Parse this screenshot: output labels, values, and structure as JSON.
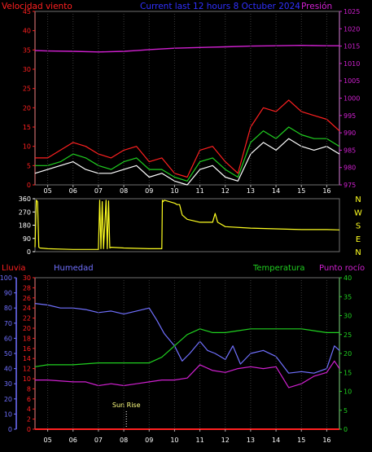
{
  "header": {
    "wind_label": "Velocidad viento",
    "title": "Current last 12 hours 8 Octuber 2024",
    "pressure_label": "Presión"
  },
  "chart_data": [
    {
      "type": "line",
      "id": "wind_pressure",
      "x_ticks": [
        "05",
        "06",
        "07",
        "08",
        "09",
        "10",
        "11",
        "12",
        "13",
        "14",
        "15",
        "16"
      ],
      "x_range": [
        4.5,
        16.5
      ],
      "y_left_range": [
        0,
        45
      ],
      "y_left_ticks": [
        "0",
        "5",
        "10",
        "15",
        "20",
        "25",
        "30",
        "35",
        "40",
        "45"
      ],
      "y_right_range": [
        975,
        1025
      ],
      "y_right_ticks": [
        "975",
        "980",
        "985",
        "990",
        "995",
        "1000",
        "1005",
        "1010",
        "1015",
        "1020",
        "1025"
      ],
      "colors": {
        "gust": "#ff2020",
        "average": "#20d020",
        "wind": "#ffffff",
        "pressure": "#d020d0"
      },
      "series": [
        {
          "key": "pressure",
          "axis": "right",
          "x": [
            4.5,
            5,
            6,
            7,
            8,
            8.5,
            9,
            10,
            11,
            12,
            13,
            14,
            15,
            16,
            16.5
          ],
          "y": [
            1013.7,
            1013.6,
            1013.5,
            1013.3,
            1013.5,
            1013.7,
            1014,
            1014.4,
            1014.6,
            1014.8,
            1015,
            1015.1,
            1015.2,
            1015.1,
            1015.1
          ]
        },
        {
          "key": "gust",
          "axis": "left",
          "x": [
            4.5,
            5,
            5.5,
            6,
            6.5,
            7,
            7.5,
            8,
            8.5,
            9,
            9.5,
            10,
            10.5,
            11,
            11.5,
            12,
            12.5,
            13,
            13.5,
            14,
            14.5,
            15,
            15.5,
            16,
            16.5
          ],
          "y": [
            7,
            7,
            9,
            11,
            10,
            8,
            7,
            9,
            10,
            6,
            7,
            3,
            2,
            9,
            10,
            6,
            3,
            15,
            20,
            19,
            22,
            19,
            18,
            17,
            14
          ]
        },
        {
          "key": "average",
          "axis": "left",
          "x": [
            4.5,
            5,
            5.5,
            6,
            6.5,
            7,
            7.5,
            8,
            8.5,
            9,
            9.5,
            10,
            10.5,
            11,
            11.5,
            12,
            12.5,
            13,
            13.5,
            14,
            14.5,
            15,
            15.5,
            16,
            16.5
          ],
          "y": [
            5,
            5,
            6,
            8,
            7,
            5,
            4,
            6,
            7,
            4,
            4,
            2,
            1,
            6,
            7,
            4,
            2,
            11,
            14,
            12,
            15,
            13,
            12,
            12,
            10
          ]
        },
        {
          "key": "wind",
          "axis": "left",
          "x": [
            4.5,
            5,
            5.5,
            6,
            6.5,
            7,
            7.5,
            8,
            8.5,
            9,
            9.5,
            10,
            10.5,
            11,
            11.5,
            12,
            12.5,
            13,
            13.5,
            14,
            14.5,
            15,
            15.5,
            16,
            16.5
          ],
          "y": [
            3,
            4,
            5,
            6,
            4,
            3,
            3,
            4,
            5,
            2,
            3,
            1,
            0,
            4,
            5,
            2,
            1,
            8,
            11,
            9,
            12,
            10,
            9,
            10,
            8
          ]
        }
      ]
    },
    {
      "type": "line",
      "id": "wind_direction",
      "x_range": [
        4.5,
        16.5
      ],
      "y_range": [
        0,
        360
      ],
      "y_ticks": [
        "0",
        "90",
        "180",
        "270",
        "360"
      ],
      "compass_labels": [
        "N",
        "W",
        "S",
        "E",
        "N"
      ],
      "colors": {
        "direction": "#ffff20"
      },
      "series": [
        {
          "key": "direction",
          "x": [
            4.5,
            4.55,
            4.6,
            4.65,
            4.7,
            5,
            6,
            7,
            7.05,
            7.1,
            7.15,
            7.2,
            7.3,
            7.35,
            7.4,
            7.45,
            7.5,
            8,
            9,
            9.5,
            9.52,
            9.55,
            9.6,
            10,
            10.1,
            10.2,
            10.3,
            10.5,
            11,
            11.5,
            11.6,
            11.7,
            12,
            13,
            14,
            15,
            16,
            16.5
          ],
          "y": [
            30,
            350,
            340,
            30,
            25,
            20,
            15,
            15,
            350,
            20,
            340,
            20,
            350,
            20,
            345,
            25,
            30,
            25,
            20,
            20,
            350,
            340,
            350,
            330,
            320,
            320,
            250,
            220,
            200,
            200,
            260,
            200,
            170,
            160,
            155,
            150,
            150,
            148
          ]
        }
      ]
    },
    {
      "type": "line",
      "id": "humidity_temperature",
      "x_ticks": [
        "05",
        "06",
        "07",
        "08",
        "09",
        "10",
        "11",
        "12",
        "13",
        "14",
        "15",
        "16"
      ],
      "x_range": [
        4.5,
        16.5
      ],
      "headers": {
        "rain": "Lluvia",
        "humidity": "Humedad",
        "temperature": "Temperatura",
        "dewpoint": "Punto rocío"
      },
      "y_humidity_range": [
        0,
        100
      ],
      "y_humidity_ticks": [
        "0",
        "10",
        "20",
        "30",
        "40",
        "50",
        "60",
        "70",
        "80",
        "90",
        "100"
      ],
      "y_rain_range": [
        0,
        30
      ],
      "y_rain_ticks": [
        "0",
        "2",
        "4",
        "6",
        "8",
        "10",
        "12",
        "14",
        "16",
        "18",
        "20",
        "22",
        "24",
        "26",
        "28",
        "30"
      ],
      "y_temp_range": [
        0,
        40
      ],
      "y_temp_ticks": [
        "0",
        "5",
        "10",
        "15",
        "20",
        "25",
        "30",
        "35",
        "40"
      ],
      "annotation": {
        "text": "Sun Rise",
        "x": 8.1
      },
      "colors": {
        "rain": "#ff2020",
        "humidity": "#7070ff",
        "temperature": "#20d020",
        "dewpoint": "#d020d0"
      },
      "series": [
        {
          "key": "rain",
          "axis": "rain",
          "x": [
            4.5,
            16.5
          ],
          "y": [
            0,
            0
          ]
        },
        {
          "key": "humidity",
          "axis": "humidity",
          "x": [
            4.5,
            5,
            5.5,
            6,
            6.5,
            7,
            7.5,
            8,
            8.5,
            9,
            9.3,
            9.6,
            10,
            10.3,
            10.6,
            11,
            11.3,
            11.6,
            12,
            12.3,
            12.6,
            13,
            13.5,
            14,
            14.5,
            15,
            15.5,
            16,
            16.3,
            16.5
          ],
          "y": [
            83,
            82,
            80,
            80,
            79,
            77,
            78,
            76,
            78,
            80,
            72,
            63,
            55,
            45,
            50,
            58,
            52,
            50,
            46,
            55,
            43,
            50,
            52,
            48,
            37,
            38,
            37,
            40,
            55,
            52
          ]
        },
        {
          "key": "temperature",
          "axis": "temp",
          "x": [
            4.5,
            5,
            6,
            7,
            8,
            8.5,
            9,
            9.5,
            10,
            10.5,
            11,
            11.5,
            12,
            12.5,
            13,
            14,
            15,
            15.5,
            16,
            16.5
          ],
          "y": [
            16.5,
            17,
            17,
            17.5,
            17.5,
            17.5,
            17.5,
            19,
            22,
            25,
            26.5,
            25.5,
            25.5,
            26,
            26.5,
            26.5,
            26.5,
            26,
            25.5,
            25.5
          ]
        },
        {
          "key": "dewpoint",
          "axis": "temp",
          "x": [
            4.5,
            5,
            6,
            6.5,
            7,
            7.5,
            8,
            8.5,
            9,
            9.5,
            10,
            10.5,
            11,
            11.5,
            12,
            12.5,
            13,
            13.5,
            14,
            14.5,
            15,
            15.5,
            16,
            16.3,
            16.5
          ],
          "y": [
            13,
            13,
            12.5,
            12.5,
            11.5,
            12,
            11.5,
            12,
            12.5,
            13,
            13,
            13.5,
            17,
            15.5,
            15,
            16,
            16.5,
            16,
            16.5,
            11,
            12,
            14,
            15,
            18,
            16
          ]
        }
      ]
    }
  ]
}
